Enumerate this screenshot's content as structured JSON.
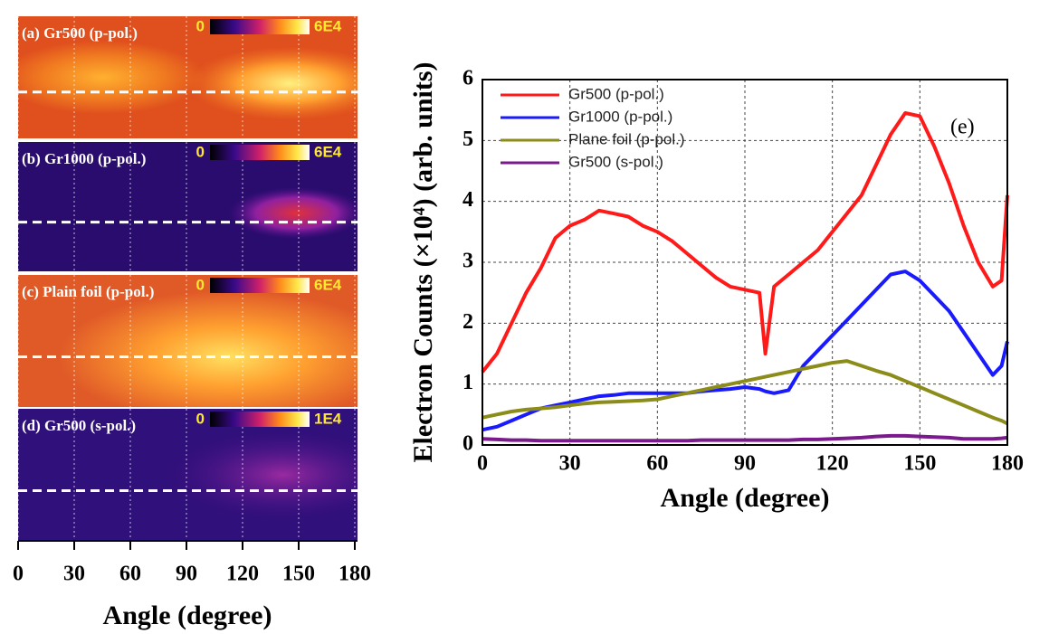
{
  "chart_data": [
    {
      "type": "heatmap-strip",
      "panels": [
        {
          "label": "(a) Gr500 (p-pol.)",
          "colorbar_ticks": [
            0,
            {
              "value": 60000,
              "label": "6E4"
            }
          ]
        },
        {
          "label": "(b) Gr1000 (p-pol.)",
          "colorbar_ticks": [
            0,
            {
              "value": 60000,
              "label": "6E4"
            }
          ]
        },
        {
          "label": "(c) Plain foil (p-pol.)",
          "colorbar_ticks": [
            0,
            {
              "value": 60000,
              "label": "6E4"
            }
          ]
        },
        {
          "label": "(d) Gr500 (s-pol.)",
          "colorbar_ticks": [
            0,
            {
              "value": 10000,
              "label": "1E4"
            }
          ]
        }
      ],
      "xlabel": "Angle (degree)",
      "xlim": [
        0,
        180
      ],
      "xticks": [
        0,
        30,
        60,
        90,
        120,
        150,
        180
      ]
    },
    {
      "type": "line",
      "xlabel": "Angle (degree)",
      "ylabel": "Electron Counts (×10⁴) (arb. units)",
      "annotation": "(e)",
      "xlim": [
        0,
        180
      ],
      "xticks": [
        0,
        30,
        60,
        90,
        120,
        150,
        180
      ],
      "ylim": [
        0,
        6
      ],
      "yticks": [
        0,
        1,
        2,
        3,
        4,
        5,
        6
      ],
      "grid": true,
      "legend": "upper left",
      "x": [
        0,
        5,
        10,
        15,
        20,
        25,
        30,
        35,
        40,
        45,
        50,
        55,
        60,
        65,
        70,
        75,
        80,
        85,
        90,
        95,
        97,
        100,
        105,
        110,
        115,
        120,
        125,
        130,
        135,
        140,
        145,
        150,
        155,
        160,
        165,
        170,
        175,
        178,
        180
      ],
      "series": [
        {
          "name": "Gr500 (p-pol.)",
          "color": "#ff1a1a",
          "values": [
            1.2,
            1.5,
            2.0,
            2.5,
            2.9,
            3.4,
            3.6,
            3.7,
            3.85,
            3.8,
            3.75,
            3.6,
            3.5,
            3.35,
            3.15,
            2.95,
            2.75,
            2.6,
            2.55,
            2.5,
            1.5,
            2.6,
            2.8,
            3.0,
            3.2,
            3.5,
            3.8,
            4.1,
            4.6,
            5.1,
            5.45,
            5.4,
            4.9,
            4.3,
            3.6,
            3.0,
            2.6,
            2.7,
            4.1
          ]
        },
        {
          "name": "Gr1000 (p-pol.)",
          "color": "#1a1aff",
          "values": [
            0.25,
            0.3,
            0.4,
            0.5,
            0.6,
            0.65,
            0.7,
            0.75,
            0.8,
            0.82,
            0.85,
            0.85,
            0.85,
            0.85,
            0.85,
            0.88,
            0.9,
            0.92,
            0.95,
            0.92,
            0.88,
            0.85,
            0.9,
            1.3,
            1.55,
            1.8,
            2.05,
            2.3,
            2.55,
            2.8,
            2.85,
            2.7,
            2.45,
            2.2,
            1.85,
            1.5,
            1.15,
            1.3,
            1.7
          ]
        },
        {
          "name": "Plane foil (p-pol.)",
          "color": "#8c8c1a",
          "values": [
            0.45,
            0.5,
            0.55,
            0.58,
            0.6,
            0.62,
            0.65,
            0.68,
            0.7,
            0.71,
            0.72,
            0.73,
            0.75,
            0.8,
            0.85,
            0.9,
            0.95,
            1.0,
            1.05,
            1.1,
            1.12,
            1.15,
            1.2,
            1.25,
            1.3,
            1.35,
            1.38,
            1.3,
            1.22,
            1.15,
            1.05,
            0.95,
            0.85,
            0.75,
            0.65,
            0.55,
            0.45,
            0.4,
            0.35
          ]
        },
        {
          "name": "Gr500 (s-pol.)",
          "color": "#7a1a8c",
          "values": [
            0.1,
            0.09,
            0.08,
            0.08,
            0.07,
            0.07,
            0.07,
            0.07,
            0.07,
            0.07,
            0.07,
            0.07,
            0.07,
            0.07,
            0.07,
            0.08,
            0.08,
            0.08,
            0.08,
            0.08,
            0.08,
            0.08,
            0.08,
            0.09,
            0.09,
            0.1,
            0.11,
            0.12,
            0.14,
            0.15,
            0.15,
            0.14,
            0.13,
            0.12,
            0.1,
            0.1,
            0.1,
            0.11,
            0.12
          ]
        }
      ]
    }
  ]
}
